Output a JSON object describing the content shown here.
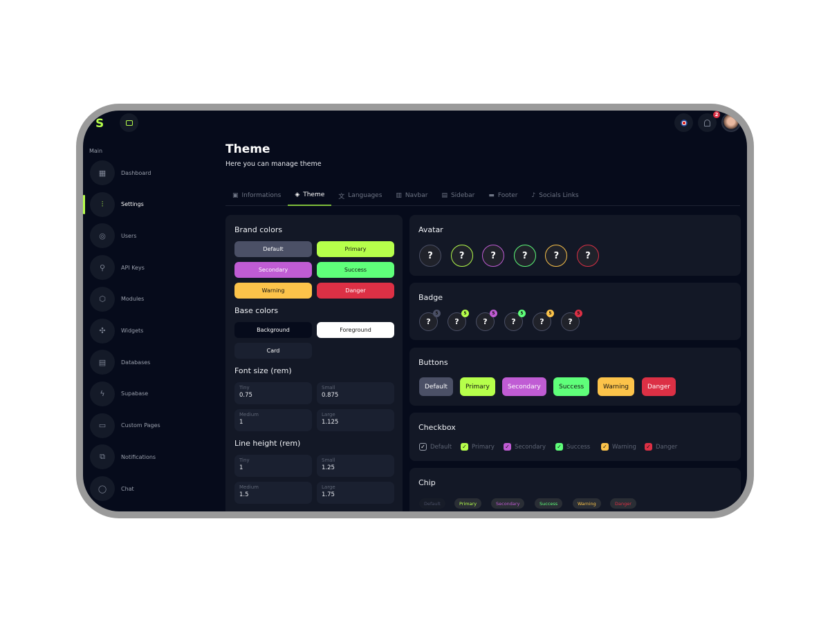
{
  "colors": {
    "default": "#4b5066",
    "primary": "#b6ff4b",
    "secondary": "#c05cd4",
    "success": "#5fff7a",
    "warning": "#fcc34a",
    "danger": "#dc3045",
    "background": "#060b1b",
    "card": "#131826"
  },
  "header": {
    "notification_count": "2"
  },
  "sidebar": {
    "section": "Main",
    "items": [
      {
        "label": "Dashboard",
        "icon": "grid-icon"
      },
      {
        "label": "Settings",
        "icon": "sliders-icon"
      },
      {
        "label": "Users",
        "icon": "users-icon"
      },
      {
        "label": "API Keys",
        "icon": "key-icon"
      },
      {
        "label": "Modules",
        "icon": "box-icon"
      },
      {
        "label": "Widgets",
        "icon": "puzzle-icon"
      },
      {
        "label": "Databases",
        "icon": "database-icon"
      },
      {
        "label": "Supabase",
        "icon": "bolt-icon"
      },
      {
        "label": "Custom Pages",
        "icon": "pages-icon"
      },
      {
        "label": "Notifications",
        "icon": "notification-icon"
      },
      {
        "label": "Chat",
        "icon": "chat-icon"
      }
    ]
  },
  "page": {
    "title": "Theme",
    "subtitle": "Here you can manage theme"
  },
  "tabs": [
    {
      "label": "Informations"
    },
    {
      "label": "Theme"
    },
    {
      "label": "Languages"
    },
    {
      "label": "Navbar"
    },
    {
      "label": "Sidebar"
    },
    {
      "label": "Footer"
    },
    {
      "label": "Socials Links"
    }
  ],
  "left": {
    "brand_title": "Brand colors",
    "brand": [
      "Default",
      "Primary",
      "Secondary",
      "Success",
      "Warning",
      "Danger"
    ],
    "base_title": "Base colors",
    "base": [
      "Background",
      "Foreground",
      "Card"
    ],
    "font_title": "Font size (rem)",
    "font": [
      {
        "l": "Tiny",
        "v": "0.75"
      },
      {
        "l": "Small",
        "v": "0.875"
      },
      {
        "l": "Medium",
        "v": "1"
      },
      {
        "l": "Large",
        "v": "1.125"
      }
    ],
    "line_title": "Line height (rem)",
    "line": [
      {
        "l": "Tiny",
        "v": "1"
      },
      {
        "l": "Small",
        "v": "1.25"
      },
      {
        "l": "Medium",
        "v": "1.5"
      },
      {
        "l": "Large",
        "v": "1.75"
      }
    ]
  },
  "avatar": {
    "title": "Avatar",
    "glyph": "?"
  },
  "badge": {
    "title": "Badge",
    "count": "5"
  },
  "buttons": {
    "title": "Buttons",
    "items": [
      "Default",
      "Primary",
      "Secondary",
      "Success",
      "Warning",
      "Danger"
    ]
  },
  "checkbox": {
    "title": "Checkbox",
    "items": [
      "Default",
      "Primary",
      "Secondary",
      "Success",
      "Warning",
      "Danger"
    ]
  },
  "chip": {
    "title": "Chip",
    "items": [
      "Default",
      "Primary",
      "Secondary",
      "Success",
      "Warning",
      "Danger"
    ]
  }
}
